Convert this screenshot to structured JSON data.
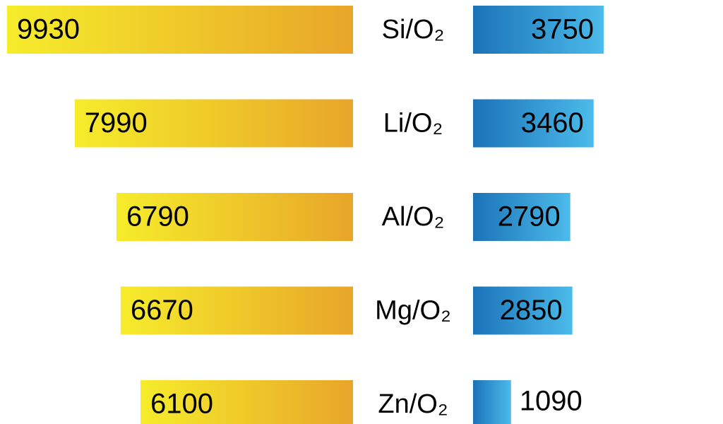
{
  "chart_data": {
    "type": "butterfly-bar",
    "categories": [
      "Si/O₂",
      "Li/O₂",
      "Al/O₂",
      "Mg/O₂",
      "Zn/O₂"
    ],
    "series": [
      {
        "colors": [
          "#f6ec2b",
          "#e8a52a"
        ],
        "values": [
          9930,
          7990,
          6790,
          6670,
          6100
        ]
      },
      {
        "colors": [
          "#1b72b8",
          "#4cbbea"
        ],
        "values": [
          3750,
          3460,
          2790,
          2850,
          1090
        ]
      }
    ]
  }
}
